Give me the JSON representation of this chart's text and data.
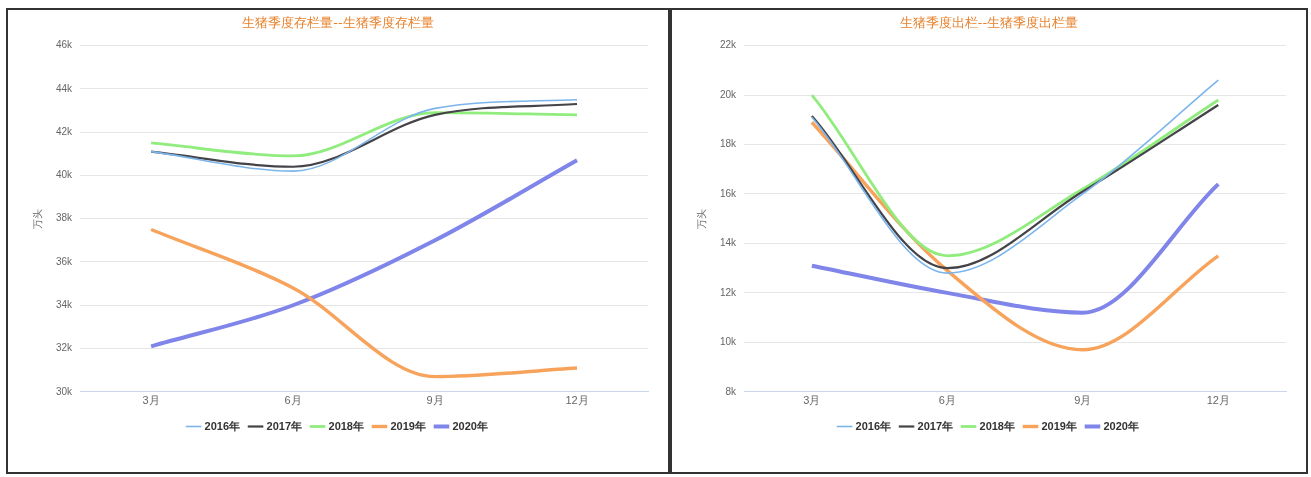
{
  "chart_data": [
    {
      "type": "line",
      "title": "生猪季度存栏量--生猪季度存栏量",
      "ylabel": "万头",
      "categories": [
        "3月",
        "6月",
        "9月",
        "12月"
      ],
      "series": [
        {
          "name": "2016年",
          "color": "#7cb5ec",
          "values": [
            41100,
            40200,
            43100,
            43500
          ]
        },
        {
          "name": "2017年",
          "color": "#434348",
          "values": [
            41100,
            40400,
            42800,
            43300
          ]
        },
        {
          "name": "2018年",
          "color": "#90ed7d",
          "values": [
            41500,
            40900,
            42900,
            42800
          ]
        },
        {
          "name": "2019年",
          "color": "#f7a35c",
          "values": [
            37500,
            34800,
            30700,
            31100
          ]
        },
        {
          "name": "2020年",
          "color": "#8085e9",
          "values": [
            32100,
            34000,
            37000,
            40700
          ]
        }
      ],
      "ylim": [
        30000,
        46000
      ],
      "yticks": [
        {
          "value": 30000,
          "label": "30k"
        },
        {
          "value": 32000,
          "label": "32k"
        },
        {
          "value": 34000,
          "label": "34k"
        },
        {
          "value": 36000,
          "label": "36k"
        },
        {
          "value": 38000,
          "label": "38k"
        },
        {
          "value": 40000,
          "label": "40k"
        },
        {
          "value": 42000,
          "label": "42k"
        },
        {
          "value": 44000,
          "label": "44k"
        },
        {
          "value": 46000,
          "label": "46k"
        }
      ],
      "grid": "y",
      "legend": "bottom",
      "marker": "none",
      "line_style": "solid"
    },
    {
      "type": "line",
      "title": "生猪季度出栏--生猪季度出栏量",
      "ylabel": "万头",
      "categories": [
        "3月",
        "6月",
        "9月",
        "12月"
      ],
      "series": [
        {
          "name": "2016年",
          "color": "#7cb5ec",
          "values": [
            19100,
            12800,
            16000,
            20600
          ]
        },
        {
          "name": "2017年",
          "color": "#434348",
          "values": [
            19150,
            13000,
            16100,
            19600
          ]
        },
        {
          "name": "2018年",
          "color": "#90ed7d",
          "values": [
            20000,
            13500,
            16200,
            19800
          ]
        },
        {
          "name": "2019年",
          "color": "#f7a35c",
          "values": [
            18900,
            12900,
            9700,
            13500
          ]
        },
        {
          "name": "2020年",
          "color": "#8085e9",
          "values": [
            13100,
            12000,
            11200,
            16400
          ]
        }
      ],
      "ylim": [
        8000,
        22000
      ],
      "yticks": [
        {
          "value": 8000,
          "label": "8k"
        },
        {
          "value": 10000,
          "label": "10k"
        },
        {
          "value": 12000,
          "label": "12k"
        },
        {
          "value": 14000,
          "label": "14k"
        },
        {
          "value": 16000,
          "label": "16k"
        },
        {
          "value": 18000,
          "label": "18k"
        },
        {
          "value": 20000,
          "label": "20k"
        },
        {
          "value": 22000,
          "label": "22k"
        }
      ],
      "grid": "y",
      "legend": "bottom",
      "marker": "none",
      "line_style": "solid"
    }
  ]
}
